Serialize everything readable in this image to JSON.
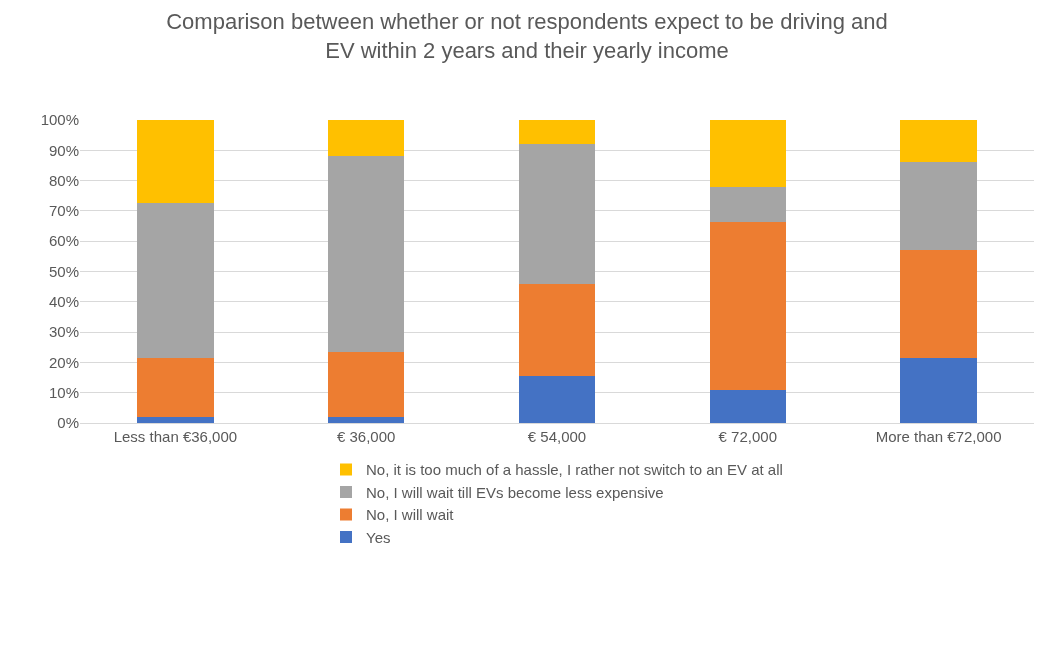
{
  "chart_data": {
    "type": "bar",
    "stacked": true,
    "title": "Comparison between whether or not respondents expect to be driving and EV within 2 years and their yearly income",
    "categories": [
      "Less than €36,000",
      "€ 36,000",
      "€ 54,000",
      "€ 72,000",
      "More than €72,000"
    ],
    "series": [
      {
        "name": "Yes",
        "color": "#4472c4",
        "values": [
          2,
          2,
          15.5,
          11,
          21.5
        ]
      },
      {
        "name": "No, I will wait",
        "color": "#ed7d31",
        "values": [
          19.5,
          21.5,
          30.5,
          55.5,
          35.5
        ]
      },
      {
        "name": "No, I will wait till EVs become less expensive",
        "color": "#a5a5a5",
        "values": [
          51,
          64.5,
          46,
          11.5,
          29
        ]
      },
      {
        "name": "No, it is too much of a hassle, I rather not switch to an EV at all",
        "color": "#ffc000",
        "values": [
          27.5,
          12,
          8,
          22,
          14
        ]
      }
    ],
    "ylim": [
      0,
      100
    ],
    "yticks": [
      {
        "value": 0,
        "label": "0%"
      },
      {
        "value": 10,
        "label": "10%"
      },
      {
        "value": 20,
        "label": "20%"
      },
      {
        "value": 30,
        "label": "30%"
      },
      {
        "value": 40,
        "label": "40%"
      },
      {
        "value": 50,
        "label": "50%"
      },
      {
        "value": 60,
        "label": "60%"
      },
      {
        "value": 70,
        "label": "70%"
      },
      {
        "value": 80,
        "label": "80%"
      },
      {
        "value": 90,
        "label": "90%"
      },
      {
        "value": 100,
        "label": "100%"
      }
    ],
    "grid": "y",
    "legend": "bottom"
  }
}
